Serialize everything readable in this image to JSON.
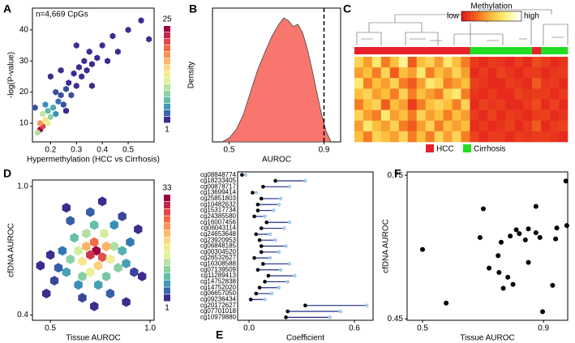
{
  "chart_data": [
    {
      "type": "hexbin",
      "panel_label": "A",
      "annotation": "n=4,669 CpGs",
      "xlabel": "Hypermethylation (HCC vs Cirrhosis)",
      "ylabel": "-log(P-value)",
      "xlim": [
        0.13,
        0.6
      ],
      "ylim": [
        4,
        47
      ],
      "xticks": [
        0.2,
        0.3,
        0.4,
        0.5
      ],
      "yticks": [
        10,
        20,
        30,
        40
      ],
      "clim": [
        1,
        25
      ],
      "cticks": [
        1,
        25
      ],
      "colormap": [
        "#3d2b8e",
        "#3288bd",
        "#66c2a5",
        "#abdda4",
        "#e6f598",
        "#fee08b",
        "#fdae61",
        "#f46d43",
        "#d53e4f",
        "#9e0142"
      ],
      "x": [
        0.16,
        0.17,
        0.16,
        0.18,
        0.17,
        0.19,
        0.2,
        0.15,
        0.19,
        0.21,
        0.22,
        0.23,
        0.18,
        0.24,
        0.25,
        0.26,
        0.27,
        0.28,
        0.29,
        0.3,
        0.31,
        0.32,
        0.33,
        0.34,
        0.35,
        0.36,
        0.38,
        0.4,
        0.42,
        0.44,
        0.46,
        0.5,
        0.55,
        0.58,
        0.2,
        0.24,
        0.14,
        0.22,
        0.26,
        0.3,
        0.36
      ],
      "y": [
        8,
        9,
        10,
        11,
        13,
        10,
        12,
        7,
        14,
        15,
        13,
        17,
        16,
        19,
        16,
        21,
        23,
        19,
        26,
        22,
        28,
        25,
        30,
        27,
        33,
        29,
        31,
        35,
        30,
        38,
        33,
        40,
        43,
        37,
        25,
        27,
        15,
        20,
        14,
        35,
        22
      ],
      "counts": [
        25,
        22,
        18,
        14,
        10,
        12,
        8,
        9,
        6,
        5,
        4,
        3,
        4,
        2,
        2,
        2,
        1,
        2,
        1,
        1,
        1,
        1,
        1,
        1,
        1,
        1,
        1,
        1,
        1,
        1,
        1,
        1,
        1,
        1,
        1,
        1,
        2,
        2,
        1,
        1,
        1
      ]
    },
    {
      "type": "density",
      "panel_label": "B",
      "xlabel": "AUROC",
      "ylabel": "Density",
      "color": "#f8766d",
      "xlim": [
        0.43,
        0.97
      ],
      "ylim": [
        0,
        1.08
      ],
      "xticks": [
        0.5,
        0.9
      ],
      "vline": 0.9,
      "x": [
        0.47,
        0.5,
        0.53,
        0.56,
        0.59,
        0.62,
        0.65,
        0.68,
        0.71,
        0.73,
        0.75,
        0.77,
        0.79,
        0.81,
        0.83,
        0.85,
        0.87,
        0.89,
        0.91,
        0.93
      ],
      "values": [
        0,
        0.03,
        0.1,
        0.22,
        0.4,
        0.58,
        0.72,
        0.85,
        0.95,
        1,
        0.98,
        0.93,
        0.95,
        0.88,
        0.75,
        0.58,
        0.4,
        0.22,
        0.08,
        0
      ]
    },
    {
      "type": "heatmap",
      "panel_label": "C",
      "legend_title": "Methylation",
      "low_label": "low",
      "high_label": "high",
      "clim": [
        0,
        1
      ],
      "colormap": [
        "#e31a1c",
        "#f46d1f",
        "#fdbf3c",
        "#fff27a",
        "#ffffff"
      ],
      "groups": [
        {
          "name": "HCC",
          "color": "#e8202a"
        },
        {
          "name": "Cirrhosis",
          "color": "#22dd22"
        }
      ],
      "sample_groups": [
        0,
        0,
        0,
        0,
        0,
        0,
        0,
        0,
        0,
        0,
        0,
        0,
        0,
        1,
        1,
        1,
        1,
        1,
        1,
        1,
        0,
        1,
        1,
        1
      ],
      "matrix": [
        [
          0.6,
          0.4,
          0.7,
          0.3,
          0.5,
          0.8,
          0.2,
          0.5,
          0.6,
          0.4,
          0.7,
          0.5,
          0.3,
          0.1,
          0.05,
          0.1,
          0.08,
          0.05,
          0.1,
          0.05,
          0.15,
          0.1,
          0.05,
          0.08
        ],
        [
          0.4,
          0.5,
          0.3,
          0.6,
          0.2,
          0.5,
          0.4,
          0.7,
          0.3,
          0.5,
          0.4,
          0.6,
          0.4,
          0.05,
          0.1,
          0.05,
          0.12,
          0.08,
          0.05,
          0.1,
          0.1,
          0.05,
          0.08,
          0.1
        ],
        [
          0.7,
          0.3,
          0.5,
          0.4,
          0.6,
          0.3,
          0.2,
          0.4,
          0.7,
          0.6,
          0.3,
          0.4,
          0.5,
          0.12,
          0.08,
          0.05,
          0.05,
          0.1,
          0.08,
          0.05,
          0.2,
          0.08,
          0.1,
          0.05
        ],
        [
          0.5,
          0.6,
          0.4,
          0.5,
          0.3,
          0.6,
          0.3,
          0.5,
          0.4,
          0.3,
          0.6,
          0.7,
          0.3,
          0.08,
          0.05,
          0.1,
          0.05,
          0.05,
          0.12,
          0.08,
          0.1,
          0.1,
          0.05,
          0.1
        ],
        [
          0.3,
          0.5,
          0.6,
          0.2,
          0.5,
          0.4,
          0.1,
          0.3,
          0.5,
          0.6,
          0.5,
          0.3,
          0.6,
          0.05,
          0.12,
          0.08,
          0.1,
          0.05,
          0.05,
          0.1,
          0.15,
          0.05,
          0.12,
          0.05
        ],
        [
          0.6,
          0.4,
          0.3,
          0.7,
          0.4,
          0.5,
          0.3,
          0.6,
          0.4,
          0.5,
          0.3,
          0.5,
          0.4,
          0.1,
          0.05,
          0.12,
          0.05,
          0.1,
          0.08,
          0.05,
          0.1,
          0.12,
          0.05,
          0.08
        ],
        [
          0.4,
          0.7,
          0.5,
          0.4,
          0.6,
          0.3,
          0.2,
          0.4,
          0.6,
          0.3,
          0.5,
          0.4,
          0.5,
          0.05,
          0.1,
          0.05,
          0.08,
          0.12,
          0.05,
          0.1,
          0.2,
          0.05,
          0.1,
          0.12
        ],
        [
          0.5,
          0.3,
          0.6,
          0.5,
          0.4,
          0.6,
          0.3,
          0.5,
          0.3,
          0.6,
          0.4,
          0.6,
          0.3,
          0.12,
          0.05,
          0.1,
          0.1,
          0.05,
          0.1,
          0.08,
          0.1,
          0.1,
          0.08,
          0.05
        ]
      ]
    },
    {
      "type": "hexbin",
      "panel_label": "D",
      "xlabel": "Tissue AUROC",
      "ylabel": "cfDNA AUROC",
      "xlim": [
        0.41,
        1.02
      ],
      "ylim": [
        0.375,
        1.03
      ],
      "xticks": [
        0.5,
        {
          "value": 1.0,
          "label": "1.0"
        }
      ],
      "yticks": [
        0.4,
        {
          "value": 1.0,
          "label": "1.0"
        }
      ],
      "clim": [
        1,
        33
      ],
      "cticks": [
        1,
        33
      ],
      "colormap": [
        "#3d2b8e",
        "#3288bd",
        "#66c2a5",
        "#abdda4",
        "#e6f598",
        "#fee08b",
        "#fdae61",
        "#f46d43",
        "#d53e4f",
        "#9e0142"
      ],
      "x": [
        0.73,
        0.7,
        0.76,
        0.72,
        0.68,
        0.78,
        0.74,
        0.66,
        0.8,
        0.7,
        0.64,
        0.77,
        0.68,
        0.82,
        0.6,
        0.84,
        0.66,
        0.78,
        0.72,
        0.62,
        0.86,
        0.58,
        0.88,
        0.74,
        0.64,
        0.82,
        0.56,
        0.9,
        0.7,
        0.8,
        0.54,
        0.6,
        0.92,
        0.52,
        0.66,
        0.86,
        0.5,
        0.94,
        0.76,
        0.72,
        0.48,
        0.96,
        0.58,
        0.88,
        0.45
      ],
      "y": [
        0.7,
        0.68,
        0.67,
        0.74,
        0.72,
        0.72,
        0.63,
        0.65,
        0.66,
        0.6,
        0.7,
        0.78,
        0.78,
        0.72,
        0.66,
        0.62,
        0.58,
        0.58,
        0.82,
        0.76,
        0.7,
        0.6,
        0.64,
        0.54,
        0.54,
        0.82,
        0.7,
        0.74,
        0.88,
        0.5,
        0.62,
        0.84,
        0.6,
        0.56,
        0.48,
        0.86,
        0.68,
        0.8,
        0.93,
        0.44,
        0.5,
        0.58,
        0.9,
        0.46,
        0.63
      ],
      "counts": [
        33,
        30,
        28,
        26,
        22,
        22,
        20,
        18,
        16,
        16,
        14,
        14,
        12,
        12,
        10,
        10,
        10,
        9,
        8,
        8,
        7,
        6,
        6,
        6,
        5,
        5,
        4,
        4,
        3,
        3,
        3,
        3,
        2,
        2,
        2,
        2,
        1,
        1,
        1,
        1,
        1,
        1,
        1,
        1,
        1
      ]
    },
    {
      "type": "dumbbell",
      "panel_label": "E",
      "xlabel": "Coefficient",
      "line_color": "#1f2d8a",
      "xlim": [
        -0.065,
        0.706
      ],
      "xticks": [
        {
          "value": 0,
          "label": "0.0"
        },
        0.6
      ],
      "categories": [
        "cg08848774",
        "cg18233405",
        "cg00878717",
        "cg13699414",
        "cg25851803",
        "cg10482632",
        "cg15317734",
        "cg24385580",
        "cg16007456",
        "cg06043114",
        "cg24653648",
        "cg23920953",
        "cg06848185",
        "cg00304520",
        "cg26532627",
        "cg16308588",
        "cg07139509",
        "cg11289413",
        "cg14752838",
        "cg14752020",
        "cg06657050",
        "cg09236434",
        "cg20172627",
        "cg07701018",
        "cg10979880"
      ],
      "series": [
        {
          "color": "#000000",
          "values": [
            -0.04,
            0.15,
            0.08,
            0.02,
            0.07,
            0.05,
            0.05,
            0.03,
            0.1,
            0.07,
            0.04,
            0.06,
            0.07,
            0.07,
            0.03,
            0.08,
            0.05,
            0.11,
            0.09,
            0.06,
            0.04,
            0.01,
            0.32,
            0.22,
            0.21
          ]
        },
        {
          "color": "#a6cbe6",
          "values": [
            -0.02,
            0.32,
            0.23,
            0.04,
            0.18,
            0.17,
            0.14,
            0.09,
            0.23,
            0.2,
            0.12,
            0.15,
            0.21,
            0.17,
            0.12,
            0.23,
            0.18,
            0.26,
            0.22,
            0.17,
            0.13,
            0.09,
            0.67,
            0.52,
            0.46
          ]
        }
      ]
    },
    {
      "type": "scatter",
      "panel_label": "F",
      "xlabel": "Tissue AUROC",
      "ylabel": "cfDNA AUROC",
      "color": "#000000",
      "xlim": [
        0.449,
        0.98
      ],
      "ylim": [
        0.447,
        0.757
      ],
      "xticks": [
        0.5,
        0.9
      ],
      "yticks": [
        0.45,
        0.75
      ],
      "x": [
        0.5,
        0.578,
        0.701,
        0.69,
        0.76,
        0.79,
        0.81,
        0.82,
        0.84,
        0.85,
        0.875,
        0.888,
        0.94,
        0.944,
        0.974,
        0.977,
        0.897,
        0.75,
        0.753,
        0.782,
        0.799,
        0.767,
        0.85,
        0.93,
        0.875,
        0.72
      ],
      "y": [
        0.595,
        0.483,
        0.68,
        0.62,
        0.61,
        0.623,
        0.636,
        0.628,
        0.615,
        0.638,
        0.63,
        0.62,
        0.617,
        0.64,
        0.738,
        0.645,
        0.465,
        0.582,
        0.547,
        0.537,
        0.522,
        0.514,
        0.568,
        0.52,
        0.685,
        0.556
      ]
    }
  ]
}
